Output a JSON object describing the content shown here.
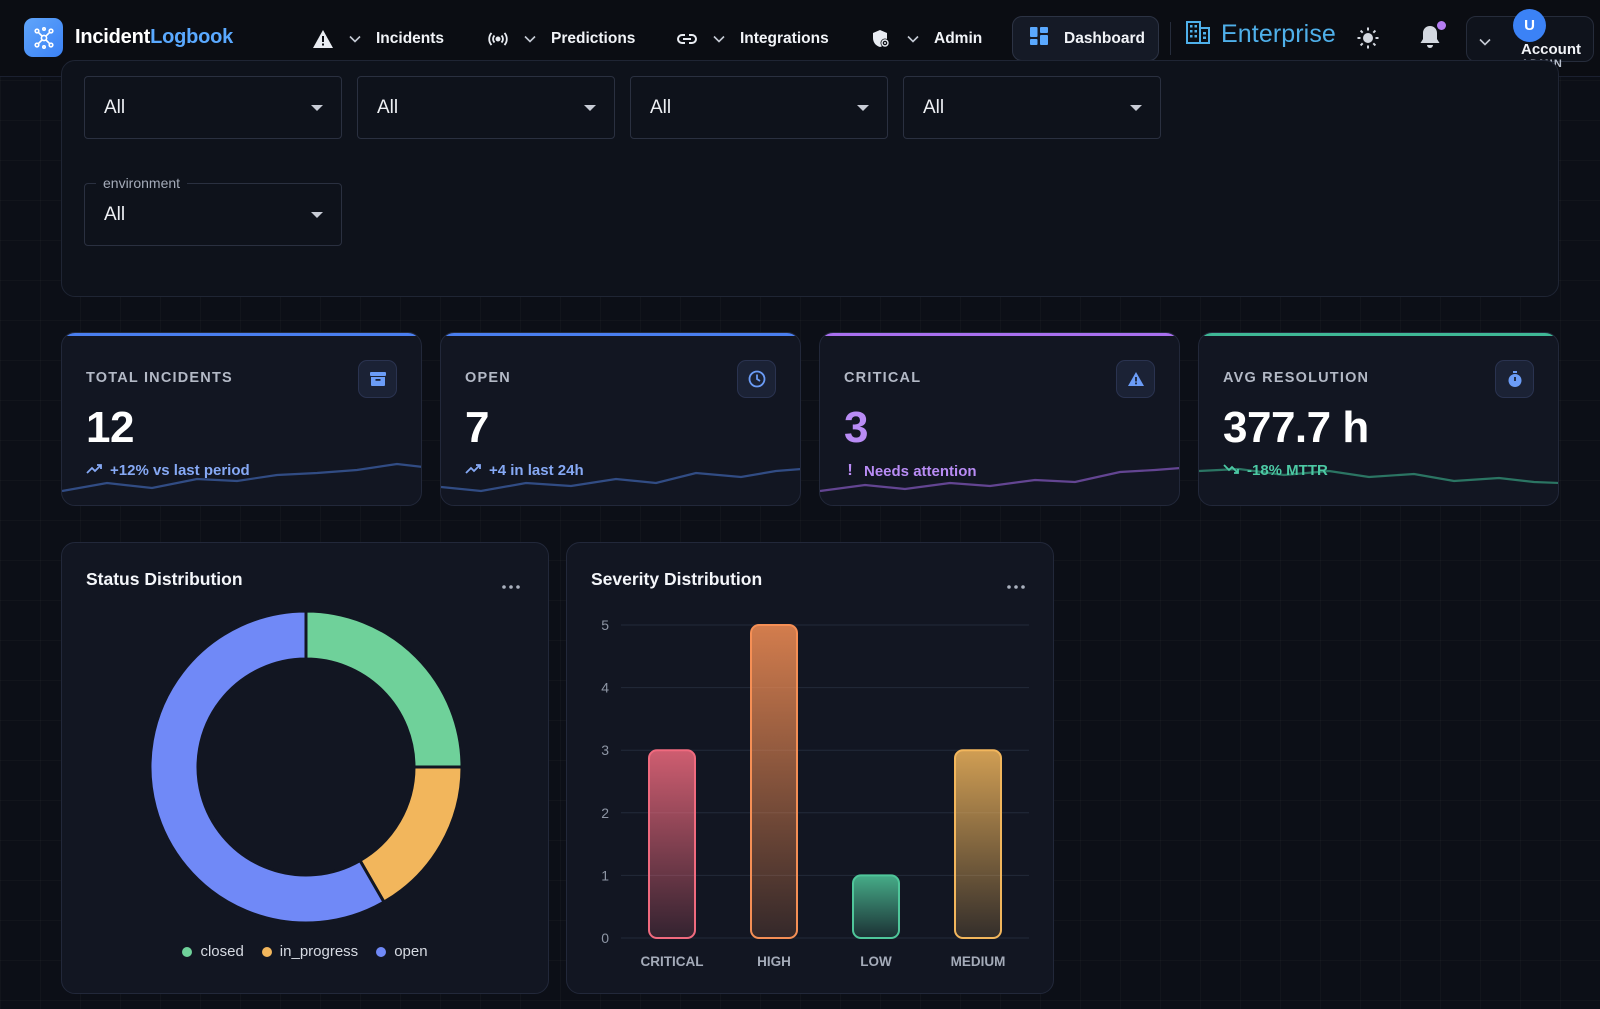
{
  "nav": {
    "brand_part1": "Incident",
    "brand_part2": "Logbook",
    "items": [
      {
        "label": "Incidents",
        "icon": "warning-triangle-icon"
      },
      {
        "label": "Predictions",
        "icon": "broadcast-icon"
      },
      {
        "label": "Integrations",
        "icon": "link-icon"
      },
      {
        "label": "Admin",
        "icon": "shield-gear-icon"
      }
    ],
    "dashboard_label": "Dashboard",
    "enterprise_label": "Enterprise",
    "account": {
      "initial": "U",
      "name": "Account",
      "role": "ADMIN"
    }
  },
  "filters": {
    "row1": [
      "All",
      "All",
      "All",
      "All"
    ],
    "environment_label": "environment",
    "environment_value": "All"
  },
  "stats": [
    {
      "label": "TOTAL INCIDENTS",
      "value": "12",
      "sub": "+12% vs last period",
      "icon": "archive-icon",
      "accent": "#4a7ff0",
      "sub_color": "#86a9f5"
    },
    {
      "label": "OPEN",
      "value": "7",
      "sub": "+4 in last 24h",
      "icon": "clock-icon",
      "accent": "#4a7ff0",
      "sub_color": "#86a9f5"
    },
    {
      "label": "CRITICAL",
      "value": "3",
      "sub": "Needs attention",
      "icon": "alert-triangle-icon",
      "accent": "#a970ef",
      "sub_color": "#b98cf5",
      "value_color": "#b98cf5"
    },
    {
      "label": "AVG RESOLUTION",
      "value": "377.7 h",
      "sub": "-18% MTTR",
      "icon": "stopwatch-icon",
      "accent": "#3fb896",
      "sub_color": "#4cc9a4"
    }
  ],
  "status_card": {
    "title": "Status Distribution"
  },
  "severity_card": {
    "title": "Severity Distribution"
  },
  "chart_data": [
    {
      "type": "pie",
      "title": "Status Distribution",
      "categories": [
        "closed",
        "in_progress",
        "open"
      ],
      "values": [
        3,
        2,
        7
      ],
      "colors": [
        "#6fd19a",
        "#f2b65c",
        "#7089f7"
      ],
      "legend": "bottom"
    },
    {
      "type": "bar",
      "title": "Severity Distribution",
      "categories": [
        "CRITICAL",
        "HIGH",
        "LOW",
        "MEDIUM"
      ],
      "values": [
        3,
        5,
        1,
        3
      ],
      "colors": [
        "#f06a7e",
        "#f58f55",
        "#4fc69a",
        "#f2b65c"
      ],
      "ylim": [
        0,
        5
      ],
      "yticks": [
        0,
        1,
        2,
        3,
        4,
        5
      ],
      "grid": true
    }
  ]
}
